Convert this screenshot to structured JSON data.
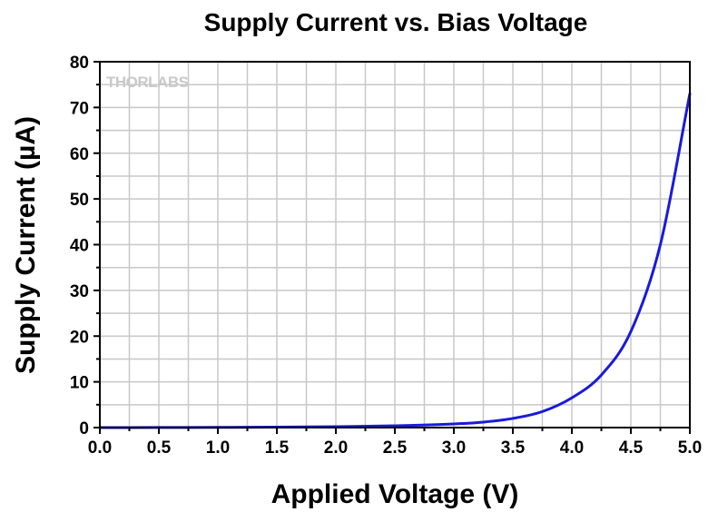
{
  "chart_data": {
    "type": "line",
    "title": "Supply Current vs. Bias Voltage",
    "xlabel": "Applied Voltage (V)",
    "ylabel": "Supply Current (µA)",
    "xlim": [
      0,
      5
    ],
    "ylim": [
      0,
      80
    ],
    "xticks": [
      "0.0",
      "0.5",
      "1.0",
      "1.5",
      "2.0",
      "2.5",
      "3.0",
      "3.5",
      "4.0",
      "4.5",
      "5.0"
    ],
    "yticks": [
      "0",
      "10",
      "20",
      "30",
      "40",
      "50",
      "60",
      "70",
      "80"
    ],
    "grid": true,
    "watermark": "THORLABS",
    "series": [
      {
        "color": "#1a1adb",
        "x": [
          0.0,
          0.5,
          1.0,
          1.5,
          2.0,
          2.5,
          3.0,
          3.25,
          3.5,
          3.75,
          4.0,
          4.25,
          4.5,
          4.75,
          5.0
        ],
        "y": [
          0.0,
          0.02,
          0.05,
          0.1,
          0.2,
          0.4,
          0.8,
          1.2,
          2.0,
          3.5,
          6.5,
          11.5,
          21.0,
          40.0,
          73.0
        ]
      }
    ]
  }
}
